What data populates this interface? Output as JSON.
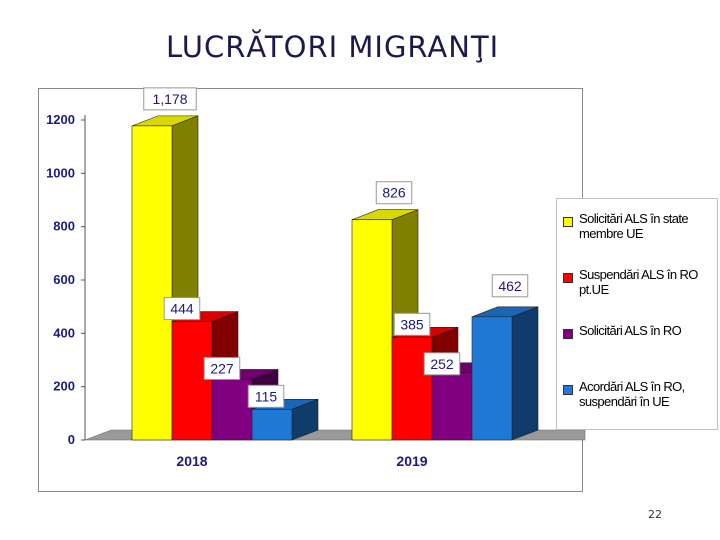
{
  "slide": {
    "title": "LUCRĂTORI MIGRANŢI",
    "page_number": "22"
  },
  "chart_data": {
    "type": "bar",
    "style": "3d-clustered",
    "categories": [
      "2018",
      "2019"
    ],
    "series": [
      {
        "name": "Solicitări ALS în state membre UE",
        "color": "#ffff00",
        "values": [
          1178,
          826
        ],
        "labels": [
          "1,178",
          "826"
        ]
      },
      {
        "name": "Suspendări ALS în RO pt.UE",
        "color": "#ff0000",
        "values": [
          444,
          385
        ],
        "labels": [
          "444",
          "385"
        ]
      },
      {
        "name": "Solicitări ALS în RO",
        "color": "#800080",
        "values": [
          227,
          252
        ],
        "labels": [
          "227",
          "252"
        ]
      },
      {
        "name": "Acordări ALS în RO, suspendări în UE",
        "color": "#1f78d6",
        "values": [
          115,
          462
        ],
        "labels": [
          "115",
          "462"
        ]
      }
    ],
    "yticks": [
      "0",
      "200",
      "400",
      "600",
      "800",
      "1000",
      "1200"
    ],
    "ylim": [
      0,
      1200
    ],
    "legend_position": "right",
    "grid": false
  }
}
